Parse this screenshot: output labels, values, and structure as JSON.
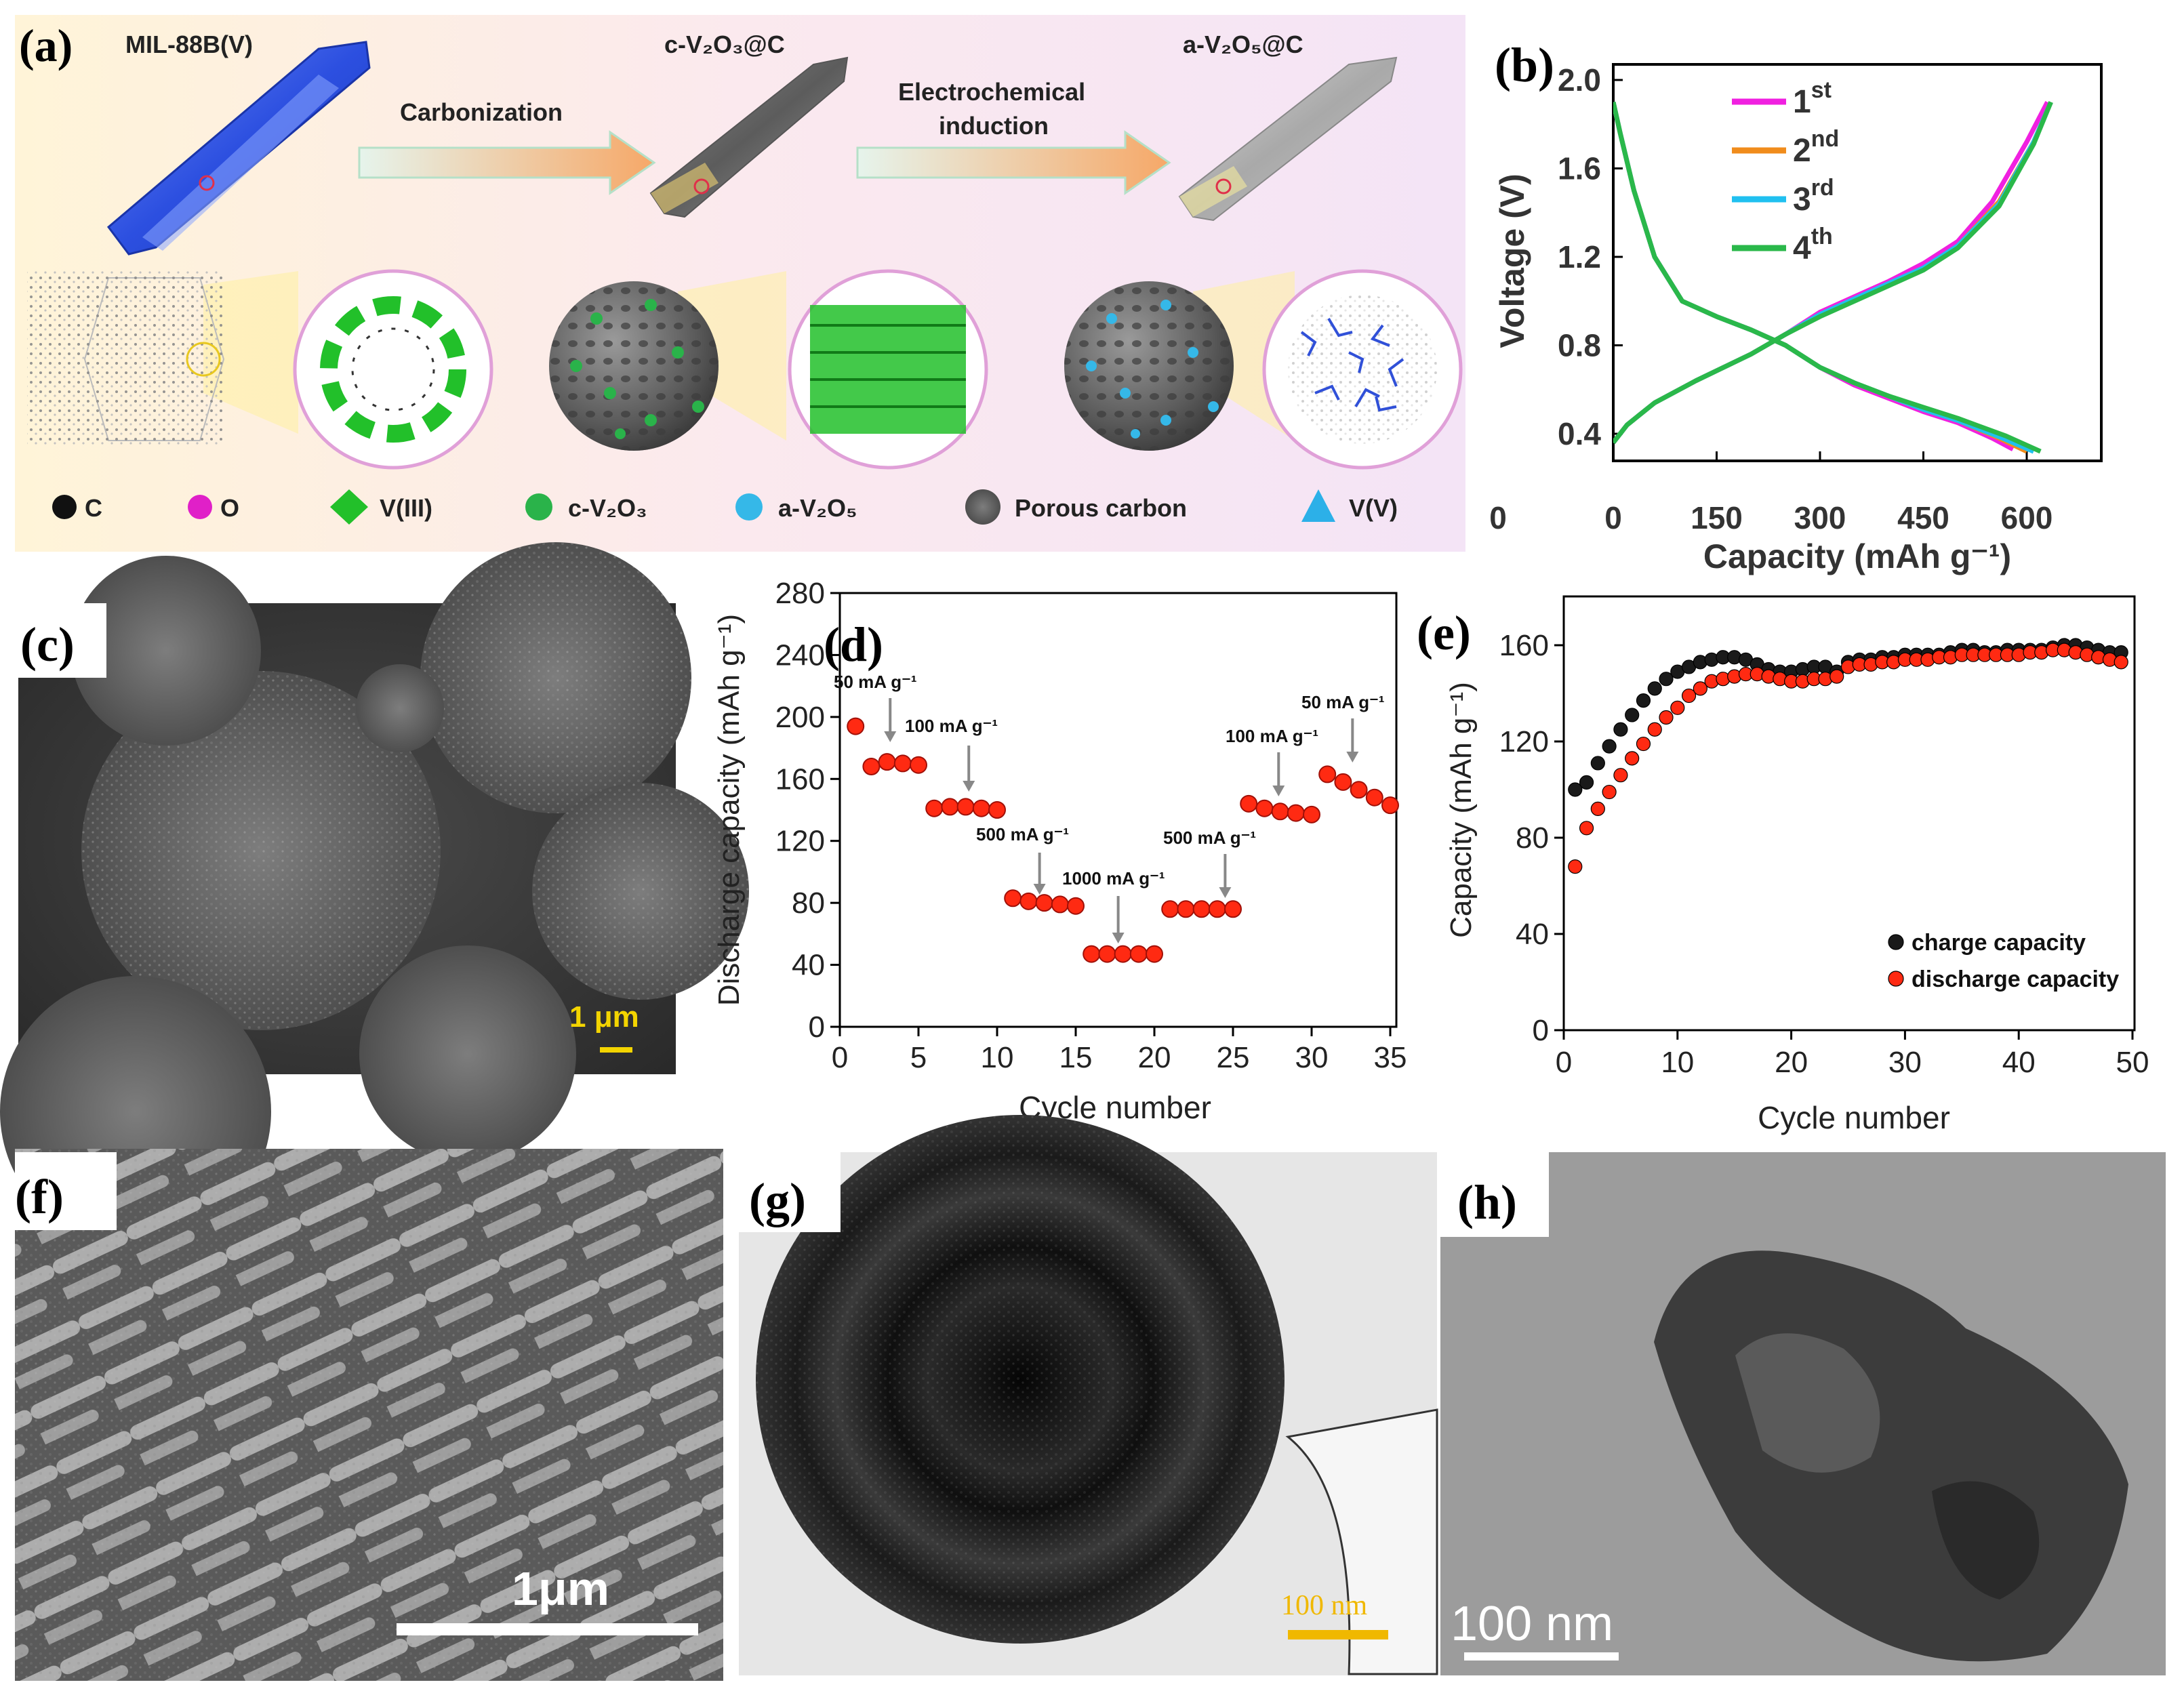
{
  "panels": {
    "a": {
      "label": "(a)",
      "stages": [
        "MIL-88B(V)",
        "c-V₂O₃@C",
        "a-V₂O₅@C"
      ],
      "arrows": [
        "Carbonization",
        "Electrochemical",
        "induction"
      ],
      "legend": [
        "C",
        "O",
        "V(III)",
        "c-V₂O₃",
        "a-V₂O₅",
        "Porous carbon",
        "V(V)"
      ],
      "colors": {
        "c": "#111111",
        "o": "#e020c8",
        "v3": "#22c02a",
        "cv2o3": "#2ab34a",
        "av2o5": "#35b8e8",
        "porous": "#707070",
        "v5": "#2cb0e8",
        "crystal": "#2d55e0",
        "arrow": "#f0a060"
      }
    },
    "b": {
      "label": "(b)"
    },
    "c": {
      "label": "(c)",
      "scale": "1 μm"
    },
    "d": {
      "label": "(d)",
      "rates": [
        "50 mA g⁻¹",
        "100 mA g⁻¹",
        "500 mA g⁻¹",
        "1000 mA g⁻¹",
        "500 mA g⁻¹",
        "100 mA g⁻¹",
        "50 mA g⁻¹"
      ]
    },
    "e": {
      "label": "(e)"
    },
    "f": {
      "label": "(f)",
      "scale": "1μm"
    },
    "g": {
      "label": "(g)",
      "scale": "100 nm"
    },
    "h": {
      "label": "(h)",
      "scale": "100 nm"
    }
  },
  "chart_data": [
    {
      "panel": "b",
      "type": "line",
      "xlabel": "Capacity (mAh g⁻¹)",
      "ylabel": "Voltage (V)",
      "xlim": [
        0,
        650
      ],
      "ylim": [
        0.3,
        2.0
      ],
      "xticks": [
        0,
        150,
        300,
        450,
        600
      ],
      "yticks": [
        0.4,
        0.8,
        1.2,
        1.6,
        2.0
      ],
      "ytick_labels": [
        "0.4",
        "0.8",
        "1.2",
        "1.6",
        "2.0"
      ],
      "series": [
        {
          "name": "1st",
          "color": "#f020e0",
          "discharge": [
            [
              0,
              1.9
            ],
            [
              10,
              1.76
            ],
            [
              30,
              1.5
            ],
            [
              60,
              1.2
            ],
            [
              100,
              1.0
            ],
            [
              150,
              0.93
            ],
            [
              200,
              0.87
            ],
            [
              250,
              0.8
            ],
            [
              300,
              0.7
            ],
            [
              350,
              0.62
            ],
            [
              400,
              0.56
            ],
            [
              450,
              0.5
            ],
            [
              500,
              0.45
            ],
            [
              550,
              0.38
            ],
            [
              580,
              0.33
            ]
          ],
          "charge": [
            [
              0,
              0.36
            ],
            [
              20,
              0.44
            ],
            [
              60,
              0.54
            ],
            [
              120,
              0.64
            ],
            [
              200,
              0.76
            ],
            [
              250,
              0.85
            ],
            [
              300,
              0.95
            ],
            [
              350,
              1.02
            ],
            [
              400,
              1.09
            ],
            [
              450,
              1.17
            ],
            [
              500,
              1.27
            ],
            [
              550,
              1.45
            ],
            [
              600,
              1.72
            ],
            [
              630,
              1.9
            ]
          ]
        },
        {
          "name": "2nd",
          "color": "#f08c1c",
          "discharge": [
            [
              0,
              1.9
            ],
            [
              10,
              1.76
            ],
            [
              30,
              1.5
            ],
            [
              60,
              1.2
            ],
            [
              100,
              1.0
            ],
            [
              150,
              0.93
            ],
            [
              200,
              0.87
            ],
            [
              250,
              0.8
            ],
            [
              300,
              0.7
            ],
            [
              350,
              0.63
            ],
            [
              400,
              0.57
            ],
            [
              450,
              0.51
            ],
            [
              500,
              0.46
            ],
            [
              560,
              0.38
            ],
            [
              600,
              0.32
            ]
          ],
          "charge": [
            [
              0,
              0.36
            ],
            [
              20,
              0.44
            ],
            [
              60,
              0.54
            ],
            [
              120,
              0.64
            ],
            [
              200,
              0.76
            ],
            [
              250,
              0.85
            ],
            [
              300,
              0.94
            ],
            [
              350,
              1.01
            ],
            [
              400,
              1.08
            ],
            [
              450,
              1.15
            ],
            [
              500,
              1.25
            ],
            [
              560,
              1.45
            ],
            [
              610,
              1.72
            ],
            [
              635,
              1.9
            ]
          ]
        },
        {
          "name": "3rd",
          "color": "#20c0f0",
          "discharge": [
            [
              0,
              1.9
            ],
            [
              10,
              1.76
            ],
            [
              30,
              1.5
            ],
            [
              60,
              1.2
            ],
            [
              100,
              1.0
            ],
            [
              150,
              0.93
            ],
            [
              200,
              0.87
            ],
            [
              250,
              0.8
            ],
            [
              300,
              0.7
            ],
            [
              350,
              0.63
            ],
            [
              400,
              0.57
            ],
            [
              450,
              0.51
            ],
            [
              500,
              0.46
            ],
            [
              565,
              0.38
            ],
            [
              610,
              0.32
            ]
          ],
          "charge": [
            [
              0,
              0.36
            ],
            [
              20,
              0.44
            ],
            [
              60,
              0.54
            ],
            [
              120,
              0.64
            ],
            [
              200,
              0.76
            ],
            [
              250,
              0.85
            ],
            [
              300,
              0.94
            ],
            [
              350,
              1.01
            ],
            [
              400,
              1.08
            ],
            [
              450,
              1.15
            ],
            [
              500,
              1.25
            ],
            [
              560,
              1.44
            ],
            [
              610,
              1.72
            ],
            [
              635,
              1.9
            ]
          ]
        },
        {
          "name": "4th",
          "color": "#2ab84a",
          "discharge": [
            [
              0,
              1.9
            ],
            [
              10,
              1.76
            ],
            [
              30,
              1.5
            ],
            [
              60,
              1.2
            ],
            [
              100,
              1.0
            ],
            [
              150,
              0.93
            ],
            [
              200,
              0.87
            ],
            [
              250,
              0.8
            ],
            [
              300,
              0.7
            ],
            [
              350,
              0.63
            ],
            [
              400,
              0.57
            ],
            [
              450,
              0.52
            ],
            [
              500,
              0.47
            ],
            [
              570,
              0.39
            ],
            [
              620,
              0.32
            ]
          ],
          "charge": [
            [
              0,
              0.36
            ],
            [
              20,
              0.44
            ],
            [
              60,
              0.54
            ],
            [
              120,
              0.64
            ],
            [
              200,
              0.76
            ],
            [
              250,
              0.85
            ],
            [
              300,
              0.93
            ],
            [
              350,
              1.0
            ],
            [
              400,
              1.07
            ],
            [
              450,
              1.14
            ],
            [
              500,
              1.24
            ],
            [
              560,
              1.43
            ],
            [
              610,
              1.71
            ],
            [
              635,
              1.9
            ]
          ]
        }
      ]
    },
    {
      "panel": "d",
      "type": "scatter",
      "xlabel": "Cycle number",
      "ylabel": "Discharge capacity (mAh g⁻¹)",
      "xlim": [
        0,
        36
      ],
      "ylim": [
        0,
        280
      ],
      "xticks": [
        0,
        5,
        10,
        15,
        20,
        25,
        30,
        35
      ],
      "yticks": [
        0,
        40,
        80,
        120,
        160,
        200,
        240,
        280
      ],
      "color": "#ff2a12",
      "x": [
        1,
        2,
        3,
        4,
        5,
        6,
        7,
        8,
        9,
        10,
        11,
        12,
        13,
        14,
        15,
        16,
        17,
        18,
        19,
        20,
        21,
        22,
        23,
        24,
        25,
        26,
        27,
        28,
        29,
        30,
        31,
        32,
        33,
        34,
        35
      ],
      "y": [
        194,
        168,
        171,
        170,
        169,
        141,
        142,
        142,
        141,
        140,
        83,
        81,
        80,
        79,
        78,
        47,
        47,
        47,
        47,
        47,
        76,
        76,
        76,
        76,
        76,
        144,
        141,
        139,
        138,
        137,
        163,
        158,
        153,
        148,
        143
      ]
    },
    {
      "panel": "e",
      "type": "scatter",
      "xlabel": "Cycle number",
      "ylabel": "Capacity (mAh g⁻¹)",
      "xlim": [
        0,
        50
      ],
      "ylim": [
        0,
        180
      ],
      "xticks": [
        0,
        10,
        20,
        30,
        40,
        50
      ],
      "yticks": [
        0,
        40,
        80,
        120,
        160
      ],
      "legend_placement": "bottom-right",
      "series": [
        {
          "name": "charge capacity",
          "color": "#1a1a1a",
          "x": [
            1,
            2,
            3,
            4,
            5,
            6,
            7,
            8,
            9,
            10,
            11,
            12,
            13,
            14,
            15,
            16,
            17,
            18,
            19,
            20,
            21,
            22,
            23,
            24,
            25,
            26,
            27,
            28,
            29,
            30,
            31,
            32,
            33,
            34,
            35,
            36,
            37,
            38,
            39,
            40,
            41,
            42,
            43,
            44,
            45,
            46,
            47,
            48,
            49
          ],
          "values": [
            100,
            103,
            111,
            118,
            125,
            131,
            137,
            142,
            146,
            149,
            151,
            153,
            154,
            155,
            155,
            154,
            152,
            150,
            149,
            149,
            150,
            151,
            151,
            149,
            153,
            154,
            154,
            155,
            155,
            156,
            156,
            156,
            156,
            157,
            158,
            158,
            157,
            157,
            158,
            158,
            158,
            158,
            159,
            160,
            160,
            159,
            158,
            157,
            157
          ]
        },
        {
          "name": "discharge capacity",
          "color": "#ff2a12",
          "x": [
            1,
            2,
            3,
            4,
            5,
            6,
            7,
            8,
            9,
            10,
            11,
            12,
            13,
            14,
            15,
            16,
            17,
            18,
            19,
            20,
            21,
            22,
            23,
            24,
            25,
            26,
            27,
            28,
            29,
            30,
            31,
            32,
            33,
            34,
            35,
            36,
            37,
            38,
            39,
            40,
            41,
            42,
            43,
            44,
            45,
            46,
            47,
            48,
            49
          ],
          "values": [
            68,
            84,
            92,
            99,
            106,
            113,
            119,
            125,
            130,
            134,
            139,
            142,
            145,
            146,
            147,
            148,
            148,
            147,
            146,
            145,
            145,
            146,
            146,
            147,
            151,
            152,
            152,
            153,
            153,
            154,
            154,
            154,
            155,
            155,
            156,
            156,
            156,
            156,
            156,
            156,
            157,
            157,
            158,
            158,
            157,
            156,
            155,
            154,
            153
          ]
        }
      ]
    }
  ]
}
